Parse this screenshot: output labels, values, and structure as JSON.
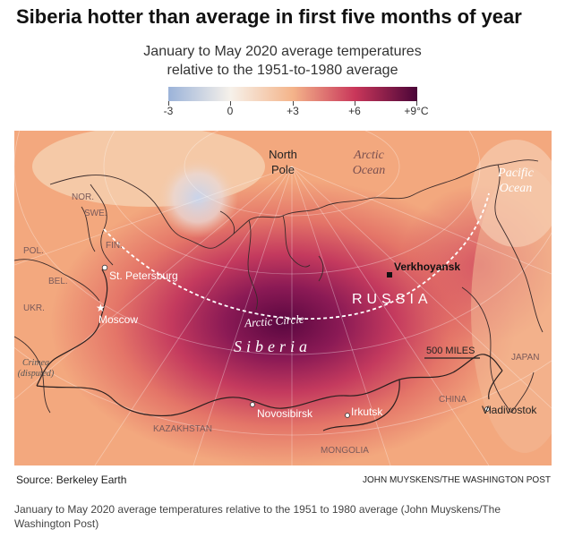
{
  "title": "Siberia hotter than average in first five months of year",
  "subtitle_line1": "January to May 2020 average temperatures",
  "subtitle_line2": "relative to the 1951-to-1980 average",
  "legend": {
    "labels": [
      "-3",
      "0",
      "+3",
      "+6",
      "+9°C"
    ],
    "values": [
      -3,
      0,
      3,
      6,
      9
    ],
    "colors": [
      "#9bb3d9",
      "#f6f1ea",
      "#f4b48a",
      "#c9375a",
      "#4a0538"
    ]
  },
  "map_labels": {
    "north_pole": [
      "North",
      "Pole"
    ],
    "arctic_ocean": [
      "Arctic",
      "Ocean"
    ],
    "pacific_ocean": [
      "Pacific",
      "Ocean"
    ],
    "nor": "NOR.",
    "swe": "SWE.",
    "fin": "FIN.",
    "pol": "POL.",
    "bel": "BEL.",
    "ukr": "UKR.",
    "crimea": [
      "Crimea",
      "(disputed)"
    ],
    "st_petersburg": "St. Petersburg",
    "moscow": "Moscow",
    "verkhoyansk": "Verkhoyansk",
    "russia": "RUSSIA",
    "arctic_circle": "Arctic Circle",
    "siberia": "Siberia",
    "scale": "500 MILES",
    "japan": "JAPAN",
    "china": "CHINA",
    "vladivostok": "Vladivostok",
    "novosibirsk": "Novosibirsk",
    "irkutsk": "Irkutsk",
    "kazakhstan": "KAZAKHSTAN",
    "mongolia": "MONGOLIA"
  },
  "source": "Source: Berkeley Earth",
  "credit": "JOHN MUYSKENS/THE WASHINGTON POST",
  "caption": "January to May 2020 average temperatures relative to the 1951 to 1980 average (John Muyskens/The Washington Post)"
}
